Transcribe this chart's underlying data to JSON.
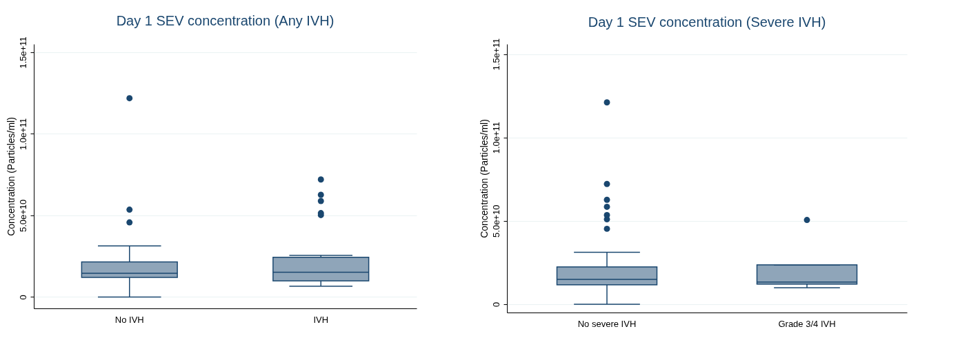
{
  "chart_data": [
    {
      "type": "box",
      "title": "Day 1 SEV concentration (Any IVH)",
      "ylabel": "Concentration (Particles/ml)",
      "categories": [
        "No IVH",
        "IVH"
      ],
      "color": "#8fa5b9",
      "grid": "y",
      "ylim": [
        -7000000000,
        155000000000
      ],
      "yticks": [
        0,
        {
          "value": 50000000000,
          "label": "5.0e+10"
        },
        {
          "value": 100000000000,
          "label": "1.0e+11"
        },
        {
          "value": 150000000000,
          "label": "1.5e+11"
        }
      ],
      "boxes": [
        {
          "low": 0,
          "q1": 12000000000,
          "median": 14500000000,
          "q3": 21500000000,
          "high": 31300000000,
          "outliers": [
            45700000000,
            53500000000,
            121800000000
          ]
        },
        {
          "low": 6600000000,
          "q1": 9900000000,
          "median": 15200000000,
          "q3": 24300000000,
          "high": 25500000000,
          "outliers": [
            50200000000,
            51400000000,
            58800000000,
            62600000000,
            72000000000
          ]
        }
      ]
    },
    {
      "type": "box",
      "title": "Day 1 SEV concentration (Severe IVH)",
      "ylabel": "Concentration (Particles/ml)",
      "categories": [
        "No severe IVH",
        "Grade 3/4 IVH"
      ],
      "color": "#8fa5b9",
      "grid": "y",
      "ylim": [
        -5000000000,
        156000000000
      ],
      "yticks": [
        0,
        {
          "value": 50000000000,
          "label": "5.0e+10"
        },
        {
          "value": 100000000000,
          "label": "1.0e+11"
        },
        {
          "value": 150000000000,
          "label": "1.5e+11"
        }
      ],
      "boxes": [
        {
          "low": 0,
          "q1": 11600000000,
          "median": 14900000000,
          "q3": 22400000000,
          "high": 31100000000,
          "outliers": [
            45200000000,
            50900000000,
            53400000000,
            58400000000,
            62600000000,
            72100000000,
            121000000000
          ]
        },
        {
          "low": 9900000000,
          "q1": 12000000000,
          "median": 13300000000,
          "q3": 23600000000,
          "high": 23600000000,
          "outliers": [
            50500000000
          ]
        }
      ]
    }
  ]
}
